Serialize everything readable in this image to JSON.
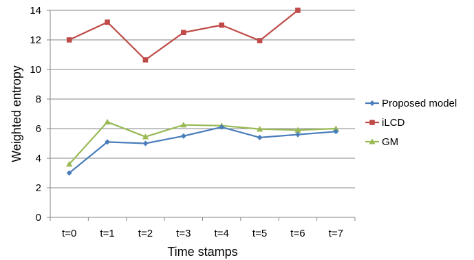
{
  "chart_data": {
    "type": "line",
    "xlabel": "Time stamps",
    "ylabel": "Weighted entropy",
    "categories": [
      "t=0",
      "t=1",
      "t=2",
      "t=3",
      "t=4",
      "t=5",
      "t=6",
      "t=7"
    ],
    "ylim": [
      0,
      14
    ],
    "yticks": [
      "0",
      "2",
      "4",
      "6",
      "8",
      "10",
      "12",
      "14"
    ],
    "grid": "horizontal",
    "legend_position": "right",
    "series": [
      {
        "name": "Proposed model",
        "color": "#4a7ebb",
        "marker": "diamond",
        "values": [
          3.0,
          5.1,
          5.0,
          5.5,
          6.1,
          5.4,
          5.6,
          5.8
        ]
      },
      {
        "name": "iLCD",
        "color": "#be4b48",
        "marker": "square",
        "values": [
          12.0,
          13.2,
          10.65,
          12.5,
          13.0,
          11.95,
          14.0,
          null
        ]
      },
      {
        "name": "GM",
        "color": "#98b954",
        "marker": "triangle",
        "values": [
          3.6,
          6.45,
          5.45,
          6.25,
          6.2,
          5.97,
          5.9,
          6.0
        ]
      }
    ]
  }
}
